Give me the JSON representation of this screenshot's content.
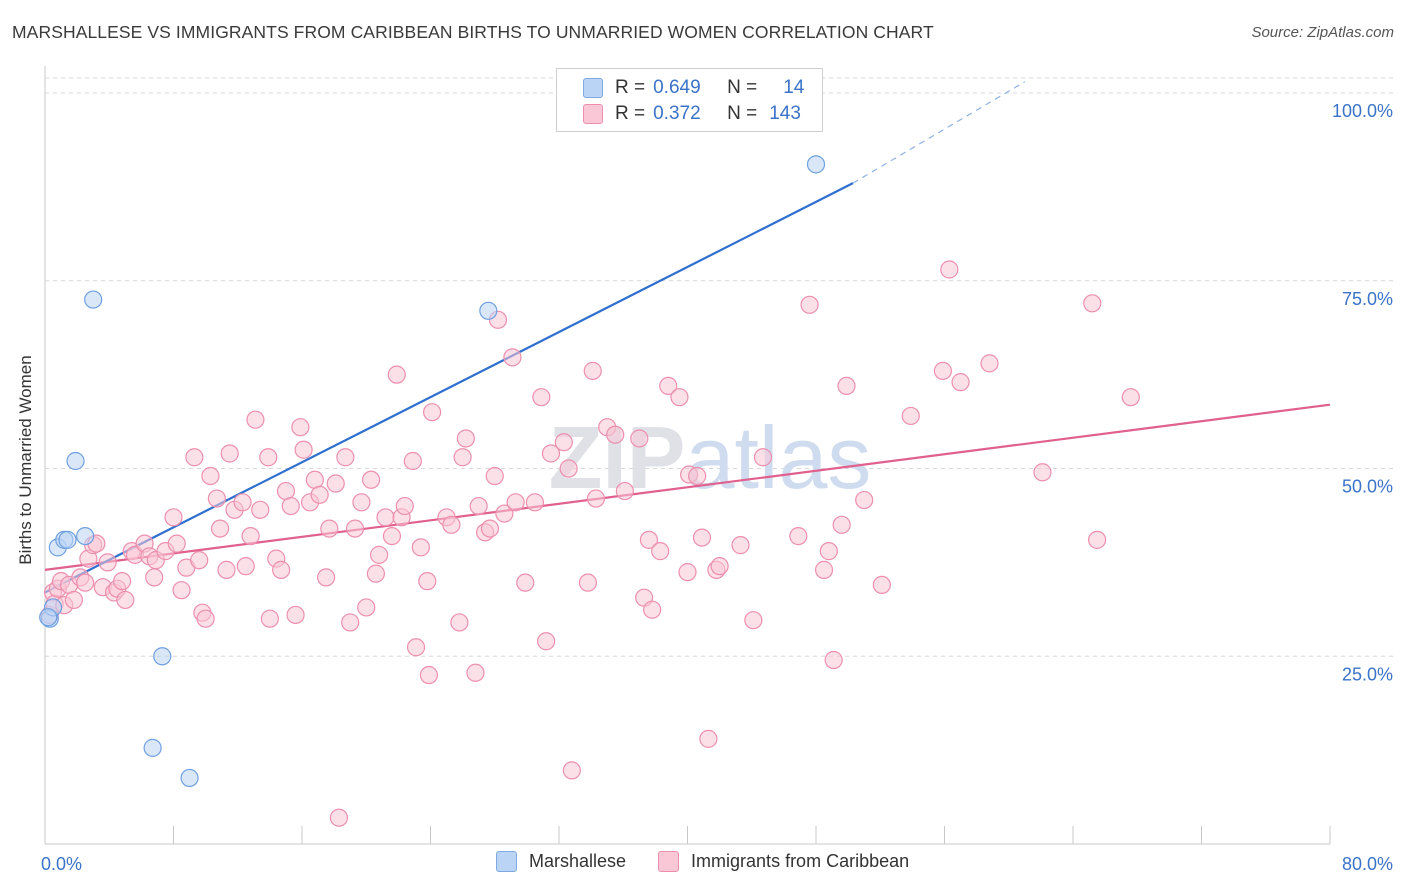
{
  "title": "MARSHALLESE VS IMMIGRANTS FROM CARIBBEAN BIRTHS TO UNMARRIED WOMEN CORRELATION CHART",
  "source": "Source: ZipAtlas.com",
  "watermark": "ZIPatlas",
  "legend_top": {
    "rows": [
      {
        "r_label": "R =",
        "r_value": "0.649",
        "n_label": "N =",
        "n_value": "14",
        "color": "#a9c8f0"
      },
      {
        "r_label": "R =",
        "r_value": "0.372",
        "n_label": "N =",
        "n_value": "143",
        "color": "#f7b9cd"
      }
    ]
  },
  "legend_bottom": [
    {
      "label": "Marshallese",
      "color": "#a9c8f0"
    },
    {
      "label": "Immigrants from Caribbean",
      "color": "#f7b9cd"
    }
  ],
  "chart_data": {
    "type": "scatter",
    "xlabel": "",
    "ylabel": "Births to Unmarried Women",
    "xlim": [
      0,
      80
    ],
    "ylim": [
      0,
      102
    ],
    "x_tick_labels": [
      "0.0%",
      "80.0%"
    ],
    "y_tick_labels": [
      "25.0%",
      "50.0%",
      "75.0%",
      "100.0%"
    ],
    "y_ticks": [
      25,
      50,
      75,
      100
    ],
    "grid": true,
    "legend_position": "top-center",
    "series": [
      {
        "name": "Marshallese",
        "color": "#6fa0e0",
        "fill": "#b9d4f4",
        "points": [
          [
            0.3,
            30.0
          ],
          [
            0.5,
            31.5
          ],
          [
            0.8,
            39.5
          ],
          [
            1.2,
            40.5
          ],
          [
            1.4,
            40.5
          ],
          [
            1.9,
            51.0
          ],
          [
            2.5,
            41.0
          ],
          [
            3.0,
            72.5
          ],
          [
            6.7,
            12.8
          ],
          [
            7.3,
            25.0
          ],
          [
            9.0,
            8.8
          ],
          [
            27.6,
            71.0
          ],
          [
            48.0,
            90.5
          ],
          [
            0.2,
            30.2
          ]
        ],
        "trend": {
          "x0": 0,
          "y0": 33.5,
          "x1": 50.3,
          "y1": 88.0,
          "dash_to_x": 61,
          "dash_to_y": 101.5,
          "color": "#2e6fd0"
        }
      },
      {
        "name": "Immigrants from Caribbean",
        "color": "#ec8fae",
        "fill": "#f9c7d6",
        "points": [
          [
            0.3,
            30.5
          ],
          [
            0.5,
            33.5
          ],
          [
            0.6,
            32.0
          ],
          [
            0.8,
            34.0
          ],
          [
            1.0,
            35.0
          ],
          [
            1.2,
            31.8
          ],
          [
            1.5,
            34.5
          ],
          [
            1.8,
            32.5
          ],
          [
            2.2,
            35.5
          ],
          [
            2.5,
            34.8
          ],
          [
            2.7,
            38.0
          ],
          [
            3.0,
            39.8
          ],
          [
            3.2,
            40.0
          ],
          [
            3.6,
            34.2
          ],
          [
            3.9,
            37.5
          ],
          [
            4.3,
            33.5
          ],
          [
            4.5,
            34.0
          ],
          [
            4.8,
            35.0
          ],
          [
            5.0,
            32.5
          ],
          [
            5.4,
            39.0
          ],
          [
            5.6,
            38.5
          ],
          [
            6.2,
            40.0
          ],
          [
            6.5,
            38.3
          ],
          [
            6.8,
            35.5
          ],
          [
            6.9,
            37.8
          ],
          [
            7.5,
            39.0
          ],
          [
            8.0,
            43.5
          ],
          [
            8.2,
            40.0
          ],
          [
            8.5,
            33.8
          ],
          [
            8.8,
            36.8
          ],
          [
            9.3,
            51.5
          ],
          [
            9.6,
            37.8
          ],
          [
            9.8,
            30.8
          ],
          [
            10.0,
            30.0
          ],
          [
            10.3,
            49.0
          ],
          [
            10.7,
            46.0
          ],
          [
            10.9,
            42.0
          ],
          [
            11.3,
            36.5
          ],
          [
            11.5,
            52.0
          ],
          [
            11.8,
            44.5
          ],
          [
            12.3,
            45.5
          ],
          [
            12.5,
            37.0
          ],
          [
            12.8,
            41.0
          ],
          [
            13.1,
            56.5
          ],
          [
            13.4,
            44.5
          ],
          [
            13.9,
            51.5
          ],
          [
            14.0,
            30.0
          ],
          [
            14.4,
            38.0
          ],
          [
            14.7,
            36.5
          ],
          [
            15.0,
            47.0
          ],
          [
            15.3,
            45.0
          ],
          [
            15.6,
            30.5
          ],
          [
            15.9,
            55.5
          ],
          [
            16.1,
            52.5
          ],
          [
            16.5,
            45.5
          ],
          [
            16.8,
            48.5
          ],
          [
            17.1,
            46.5
          ],
          [
            17.5,
            35.5
          ],
          [
            17.7,
            42.0
          ],
          [
            18.1,
            48.0
          ],
          [
            18.3,
            3.5
          ],
          [
            18.7,
            51.5
          ],
          [
            19.0,
            29.5
          ],
          [
            19.3,
            42.0
          ],
          [
            19.7,
            45.5
          ],
          [
            20.0,
            31.5
          ],
          [
            20.3,
            48.5
          ],
          [
            20.6,
            36.0
          ],
          [
            20.8,
            38.5
          ],
          [
            21.2,
            43.5
          ],
          [
            21.6,
            41.0
          ],
          [
            21.9,
            62.5
          ],
          [
            22.2,
            43.5
          ],
          [
            22.4,
            45.0
          ],
          [
            22.9,
            51.0
          ],
          [
            23.1,
            26.2
          ],
          [
            23.4,
            39.5
          ],
          [
            23.8,
            35.0
          ],
          [
            23.9,
            22.5
          ],
          [
            24.1,
            57.5
          ],
          [
            25.0,
            43.5
          ],
          [
            25.3,
            42.5
          ],
          [
            25.8,
            29.5
          ],
          [
            26.0,
            51.5
          ],
          [
            26.2,
            54.0
          ],
          [
            26.8,
            22.8
          ],
          [
            27.0,
            45.0
          ],
          [
            27.4,
            41.5
          ],
          [
            27.7,
            42.0
          ],
          [
            28.0,
            49.0
          ],
          [
            28.2,
            69.8
          ],
          [
            28.6,
            44.0
          ],
          [
            29.1,
            64.8
          ],
          [
            29.3,
            45.5
          ],
          [
            29.9,
            34.8
          ],
          [
            30.5,
            45.5
          ],
          [
            30.9,
            59.5
          ],
          [
            31.2,
            27.0
          ],
          [
            31.5,
            52.0
          ],
          [
            32.3,
            53.5
          ],
          [
            32.6,
            50.0
          ],
          [
            32.8,
            9.8
          ],
          [
            33.8,
            34.8
          ],
          [
            34.1,
            63.0
          ],
          [
            34.3,
            46.0
          ],
          [
            35.0,
            55.5
          ],
          [
            35.5,
            54.5
          ],
          [
            36.1,
            47.0
          ],
          [
            37.0,
            54.0
          ],
          [
            37.3,
            32.8
          ],
          [
            37.6,
            40.5
          ],
          [
            37.8,
            31.2
          ],
          [
            38.3,
            39.0
          ],
          [
            38.8,
            61.0
          ],
          [
            39.5,
            59.5
          ],
          [
            40.0,
            36.2
          ],
          [
            40.1,
            49.2
          ],
          [
            40.6,
            49.0
          ],
          [
            40.9,
            40.8
          ],
          [
            41.3,
            14.0
          ],
          [
            41.8,
            36.5
          ],
          [
            42.0,
            37.0
          ],
          [
            43.3,
            39.8
          ],
          [
            44.1,
            29.8
          ],
          [
            44.7,
            51.5
          ],
          [
            46.9,
            41.0
          ],
          [
            47.6,
            71.8
          ],
          [
            48.5,
            36.5
          ],
          [
            48.8,
            39.0
          ],
          [
            49.1,
            24.5
          ],
          [
            49.6,
            42.5
          ],
          [
            49.9,
            61.0
          ],
          [
            51.0,
            45.8
          ],
          [
            52.1,
            34.5
          ],
          [
            53.9,
            57.0
          ],
          [
            55.9,
            63.0
          ],
          [
            56.3,
            76.5
          ],
          [
            57.0,
            61.5
          ],
          [
            58.8,
            64.0
          ],
          [
            62.1,
            49.5
          ],
          [
            65.2,
            72.0
          ],
          [
            65.5,
            40.5
          ],
          [
            67.6,
            59.5
          ]
        ],
        "trend": {
          "x0": 0,
          "y0": 36.5,
          "x1": 80,
          "y1": 58.5,
          "color": "#e0608e"
        }
      }
    ]
  }
}
